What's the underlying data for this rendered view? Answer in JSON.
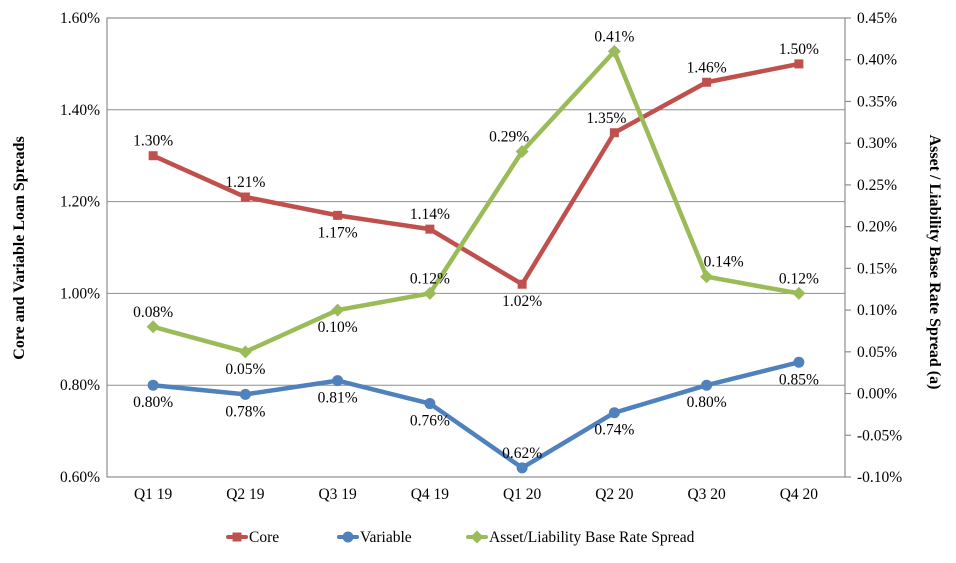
{
  "chart_data": {
    "type": "line",
    "categories": [
      "Q1 19",
      "Q2 19",
      "Q3 19",
      "Q4 19",
      "Q1 20",
      "Q2 20",
      "Q3 20",
      "Q4 20"
    ],
    "series": [
      {
        "name": "Core",
        "axis": "left",
        "color": "#C0504D",
        "marker": "square",
        "values": [
          1.3,
          1.21,
          1.17,
          1.14,
          1.02,
          1.35,
          1.46,
          1.5
        ],
        "point_labels": [
          "1.30%",
          "1.21%",
          "1.17%",
          "1.14%",
          "1.02%",
          "1.35%",
          "1.46%",
          "1.50%"
        ],
        "label_positions": [
          "above",
          "above",
          "below",
          "above",
          "below",
          "above",
          "above",
          "above"
        ],
        "label_dx": [
          0,
          0,
          0,
          0,
          0,
          -8,
          0,
          0
        ]
      },
      {
        "name": "Variable",
        "axis": "left",
        "color": "#4F81BD",
        "marker": "circle",
        "values": [
          0.8,
          0.78,
          0.81,
          0.76,
          0.62,
          0.74,
          0.8,
          0.85
        ],
        "point_labels": [
          "0.80%",
          "0.78%",
          "0.81%",
          "0.76%",
          "0.62%",
          "0.74%",
          "0.80%",
          "0.85%"
        ],
        "label_positions": [
          "below",
          "below",
          "below",
          "below",
          "above",
          "below",
          "below",
          "below"
        ],
        "label_dx": [
          0,
          0,
          0,
          0,
          0,
          0,
          0,
          0
        ]
      },
      {
        "name": "Asset/Liability Base Rate Spread",
        "axis": "right",
        "color": "#9BBB59",
        "marker": "diamond",
        "values": [
          0.08,
          0.05,
          0.1,
          0.12,
          0.29,
          0.41,
          0.14,
          0.12
        ],
        "point_labels": [
          "0.08%",
          "0.05%",
          "0.10%",
          "0.12%",
          "0.29%",
          "0.41%",
          "0.14%",
          "0.12%"
        ],
        "label_positions": [
          "above",
          "below",
          "below",
          "above",
          "above",
          "above",
          "above",
          "above"
        ],
        "label_dx": [
          0,
          0,
          0,
          0,
          -13,
          0,
          17,
          0
        ]
      }
    ],
    "left_axis": {
      "title": "Core and Variable Loan Spreads",
      "min": 0.6,
      "max": 1.6,
      "tick_labels": [
        "0.60%",
        "0.80%",
        "1.00%",
        "1.20%",
        "1.40%",
        "1.60%"
      ]
    },
    "right_axis": {
      "title": "Asset / Liability Base Rate Spread (a)",
      "min": -0.1,
      "max": 0.45,
      "tick_labels": [
        "-0.10%",
        "-0.05%",
        "0.00%",
        "0.05%",
        "0.10%",
        "0.15%",
        "0.20%",
        "0.25%",
        "0.30%",
        "0.35%",
        "0.40%",
        "0.45%"
      ]
    },
    "legend": {
      "position": "bottom",
      "entries": [
        "Core",
        "Variable",
        "Asset/Liability Base Rate Spread"
      ]
    },
    "grid": "horizontal",
    "colors": {
      "grid": "#8E8E8E",
      "axis": "#8E8E8E",
      "text": "#000000",
      "background": "#FFFFFF"
    }
  }
}
